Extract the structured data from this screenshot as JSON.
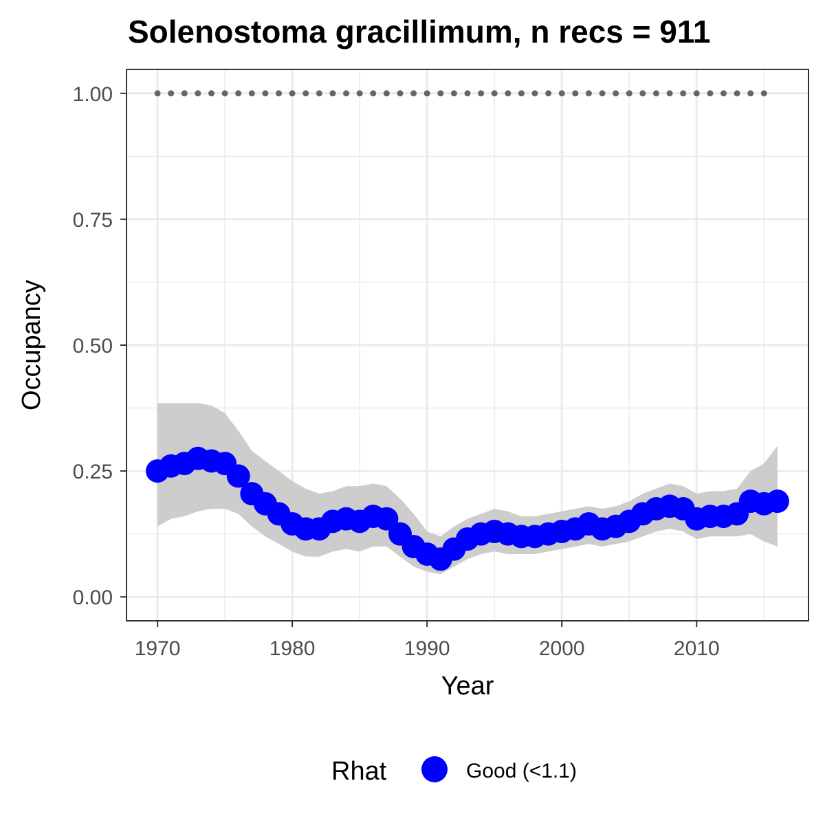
{
  "chart_data": {
    "type": "line",
    "title": "Solenostoma gracillimum, n recs = 911",
    "xlabel": "Year",
    "ylabel": "Occupancy",
    "xlim": [
      1967.7,
      1718.3
    ],
    "ylim": [
      -0.0475,
      1.0475
    ],
    "x_ticks": [
      1970,
      1980,
      1990,
      2000,
      2010
    ],
    "x_tick_labels": [
      "1970",
      "1980",
      "1990",
      "2000",
      "2010"
    ],
    "y_ticks": [
      0,
      0.25,
      0.5,
      0.75,
      1.0
    ],
    "y_tick_labels": [
      "0.00",
      "0.25",
      "0.50",
      "0.75",
      "1.00"
    ],
    "grid": true,
    "legend": {
      "title": "Rhat",
      "position": "bottom",
      "entries": [
        {
          "label": "Good (<1.1)",
          "color": "#0000ff"
        }
      ]
    },
    "colors": {
      "series": "#0000ff",
      "ribbon": "#c8c8c8",
      "reference": "#666666",
      "grid": "#ebebeb",
      "panel_border": "#333333"
    },
    "series": [
      {
        "kind": "mean",
        "x": [
          1970,
          1971,
          1972,
          1973,
          1974,
          1975,
          1976,
          1977,
          1978,
          1979,
          1980,
          1981,
          1982,
          1983,
          1984,
          1985,
          1986,
          1987,
          1988,
          1989,
          1990,
          1991,
          1992,
          1993,
          1994,
          1995,
          1996,
          1997,
          1998,
          1999,
          2000,
          2001,
          2002,
          2003,
          2004,
          2005,
          2006,
          2007,
          2008,
          2009,
          2010,
          2011,
          2012,
          2013,
          2014,
          2015,
          2016
        ],
        "values": [
          0.25,
          0.26,
          0.265,
          0.275,
          0.27,
          0.265,
          0.24,
          0.205,
          0.185,
          0.165,
          0.145,
          0.135,
          0.135,
          0.15,
          0.155,
          0.15,
          0.16,
          0.155,
          0.125,
          0.1,
          0.085,
          0.075,
          0.095,
          0.115,
          0.125,
          0.13,
          0.125,
          0.12,
          0.12,
          0.125,
          0.13,
          0.135,
          0.145,
          0.135,
          0.14,
          0.15,
          0.165,
          0.175,
          0.18,
          0.175,
          0.155,
          0.16,
          0.16,
          0.165,
          0.19,
          0.185,
          0.19
        ]
      },
      {
        "kind": "ci_upper",
        "values": [
          0.385,
          0.385,
          0.385,
          0.385,
          0.38,
          0.365,
          0.33,
          0.29,
          0.27,
          0.25,
          0.23,
          0.215,
          0.205,
          0.21,
          0.22,
          0.22,
          0.225,
          0.22,
          0.195,
          0.165,
          0.13,
          0.12,
          0.14,
          0.155,
          0.165,
          0.175,
          0.17,
          0.16,
          0.16,
          0.165,
          0.17,
          0.175,
          0.18,
          0.175,
          0.18,
          0.19,
          0.205,
          0.215,
          0.225,
          0.22,
          0.205,
          0.21,
          0.21,
          0.215,
          0.25,
          0.265,
          0.3
        ]
      },
      {
        "kind": "ci_lower",
        "values": [
          0.14,
          0.155,
          0.16,
          0.17,
          0.175,
          0.175,
          0.165,
          0.14,
          0.12,
          0.105,
          0.09,
          0.08,
          0.08,
          0.09,
          0.095,
          0.09,
          0.1,
          0.1,
          0.08,
          0.06,
          0.05,
          0.045,
          0.06,
          0.075,
          0.085,
          0.09,
          0.085,
          0.085,
          0.085,
          0.09,
          0.095,
          0.1,
          0.105,
          0.1,
          0.105,
          0.11,
          0.12,
          0.13,
          0.135,
          0.13,
          0.115,
          0.12,
          0.12,
          0.12,
          0.125,
          0.11,
          0.1
        ]
      },
      {
        "kind": "reference",
        "x": [
          1970,
          1971,
          1972,
          1973,
          1974,
          1975,
          1976,
          1977,
          1978,
          1979,
          1980,
          1981,
          1982,
          1983,
          1984,
          1985,
          1986,
          1987,
          1988,
          1989,
          1990,
          1991,
          1992,
          1993,
          1994,
          1995,
          1996,
          1997,
          1998,
          1999,
          2000,
          2001,
          2002,
          2003,
          2004,
          2005,
          2006,
          2007,
          2008,
          2009,
          2010,
          2011,
          2012,
          2013,
          2014,
          2015
        ],
        "values": [
          1,
          1,
          1,
          1,
          1,
          1,
          1,
          1,
          1,
          1,
          1,
          1,
          1,
          1,
          1,
          1,
          1,
          1,
          1,
          1,
          1,
          1,
          1,
          1,
          1,
          1,
          1,
          1,
          1,
          1,
          1,
          1,
          1,
          1,
          1,
          1,
          1,
          1,
          1,
          1,
          1,
          1,
          1,
          1,
          1,
          1
        ]
      }
    ]
  }
}
